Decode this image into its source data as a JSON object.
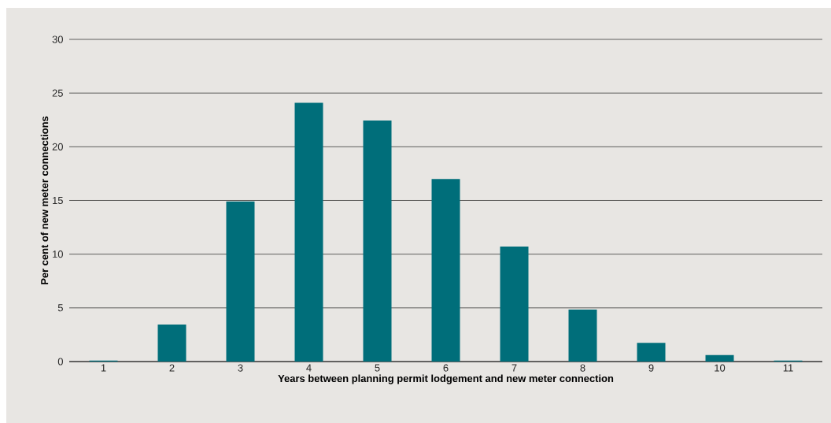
{
  "chart_data": {
    "type": "bar",
    "xlabel": "Years between planning permit lodgement and new meter connection",
    "ylabel": "Per cent of new meter connections",
    "categories": [
      "1",
      "2",
      "3",
      "4",
      "5",
      "6",
      "7",
      "8",
      "9",
      "10",
      "11"
    ],
    "values": [
      0.1,
      3.45,
      14.9,
      24.1,
      22.45,
      17.0,
      10.7,
      4.85,
      1.75,
      0.6,
      0.1
    ],
    "color": "#006e7a",
    "ylim": [
      0,
      30
    ],
    "yticks": [
      0,
      5,
      10,
      15,
      20,
      25,
      30
    ],
    "grid": "y"
  }
}
